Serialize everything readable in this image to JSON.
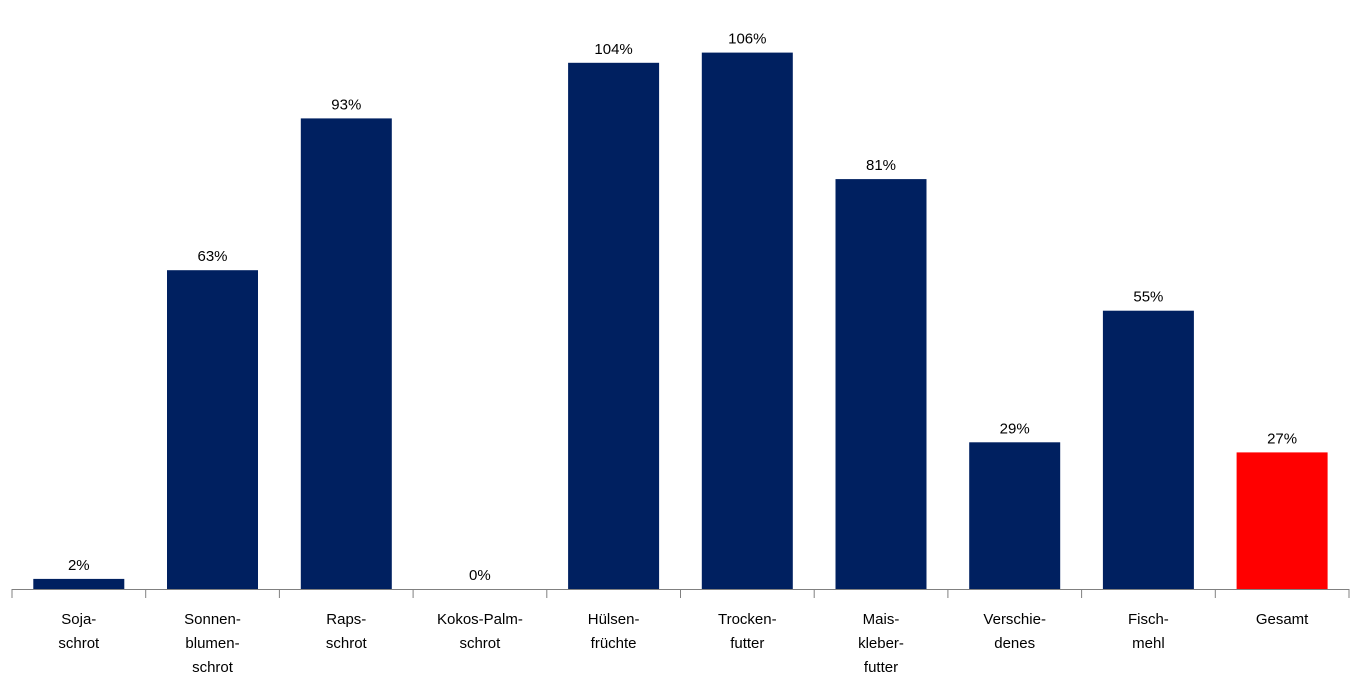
{
  "chart_data": {
    "type": "bar",
    "categories": [
      [
        "Soja-",
        "schrot"
      ],
      [
        "Sonnen-",
        "blumen-",
        "schrot"
      ],
      [
        "Raps-",
        "schrot"
      ],
      [
        "Kokos-Palm-",
        "schrot"
      ],
      [
        "Hülsen-",
        "früchte"
      ],
      [
        "Trocken-",
        "futter"
      ],
      [
        "Mais-",
        "kleber-",
        "futter"
      ],
      [
        "Verschie-",
        "denes"
      ],
      [
        "Fisch-",
        "mehl"
      ],
      [
        "Gesamt"
      ]
    ],
    "values": [
      2,
      63,
      93,
      0,
      104,
      106,
      81,
      29,
      55,
      27
    ],
    "value_labels": [
      "2%",
      "63%",
      "93%",
      "0%",
      "104%",
      "106%",
      "81%",
      "29%",
      "55%",
      "27%"
    ],
    "unit": "%",
    "ylim": [
      0,
      110
    ],
    "grid": false,
    "legend": "none",
    "colors": {
      "bar": "#002060",
      "highlight": "#ff0000",
      "axis": "#808080"
    },
    "highlight_index": 9
  }
}
